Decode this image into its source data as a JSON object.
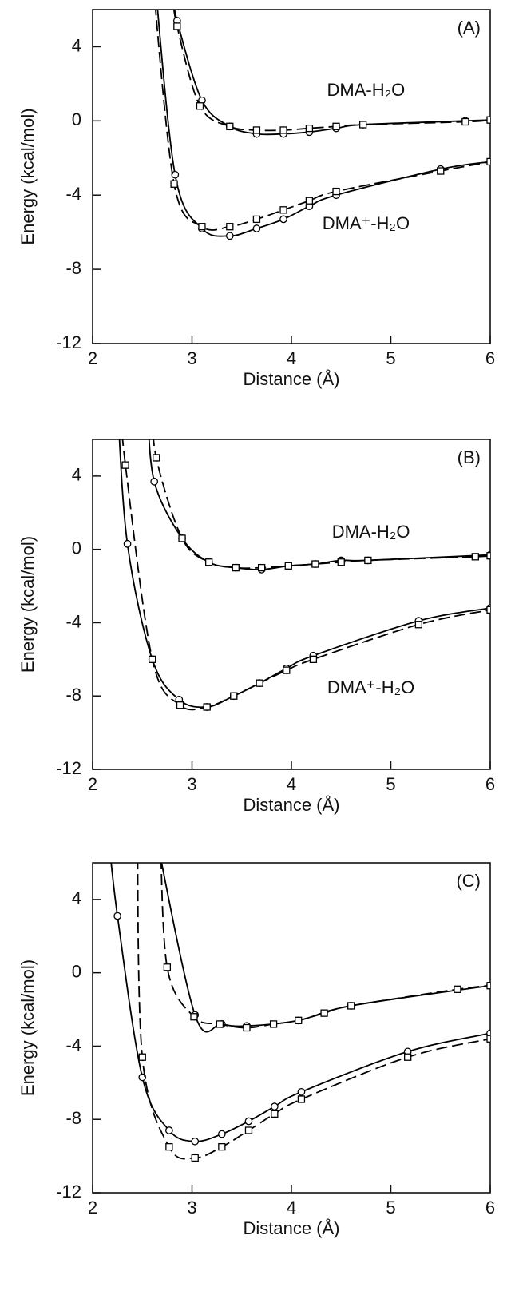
{
  "chart_data": [
    {
      "type": "line",
      "title": "(A)",
      "xlabel": "Distance (Å)",
      "ylabel": "Energy (kcal/mol)",
      "xlim": [
        2,
        6
      ],
      "ylim": [
        -12,
        6
      ],
      "xticks": [
        2,
        3,
        4,
        5,
        6
      ],
      "yticks": [
        4,
        0,
        -4,
        -8,
        -12
      ],
      "annotations": [
        "DMA-H₂O",
        "DMA⁺-H₂O"
      ],
      "series": [
        {
          "color": "#000000",
          "line_style": "solid",
          "marker": "circle",
          "x": [
            2.8,
            2.85,
            3.1,
            3.38,
            3.65,
            3.92,
            4.18,
            4.45,
            4.72,
            5.75,
            6
          ],
          "values": [
            7,
            5.4,
            1.1,
            -0.3,
            -0.7,
            -0.7,
            -0.6,
            -0.4,
            -0.2,
            0,
            0.05
          ]
        },
        {
          "color": "#000000",
          "line_style": "dashed",
          "marker": "square",
          "x": [
            2.8,
            2.85,
            3.08,
            3.38,
            3.65,
            3.92,
            4.18,
            4.45,
            4.72,
            5.75,
            6
          ],
          "values": [
            7,
            5.1,
            0.8,
            -0.3,
            -0.5,
            -0.5,
            -0.4,
            -0.3,
            -0.2,
            -0.05,
            0.05
          ]
        },
        {
          "color": "#000000",
          "line_style": "solid",
          "marker": "circle",
          "x": [
            2.62,
            2.83,
            3.1,
            3.38,
            3.65,
            3.92,
            4.18,
            4.45,
            5.5,
            6
          ],
          "values": [
            8,
            -2.9,
            -5.8,
            -6.2,
            -5.8,
            -5.3,
            -4.6,
            -4.0,
            -2.6,
            -2.2
          ]
        },
        {
          "color": "#000000",
          "line_style": "dashed",
          "marker": "square",
          "x": [
            2.6,
            2.82,
            3.1,
            3.38,
            3.65,
            3.92,
            4.18,
            4.45,
            5.5,
            6
          ],
          "values": [
            8,
            -3.4,
            -5.7,
            -5.7,
            -5.3,
            -4.8,
            -4.3,
            -3.8,
            -2.7,
            -2.2
          ]
        }
      ]
    },
    {
      "type": "line",
      "title": "(B)",
      "xlabel": "Distance (Å)",
      "ylabel": "Energy (kcal/mol)",
      "xlim": [
        2,
        6
      ],
      "ylim": [
        -12,
        6
      ],
      "xticks": [
        2,
        3,
        4,
        5,
        6
      ],
      "yticks": [
        4,
        0,
        -4,
        -8,
        -12
      ],
      "annotations": [
        "DMA-H₂O",
        "DMA⁺-H₂O"
      ],
      "series": [
        {
          "color": "#000000",
          "line_style": "solid",
          "marker": "circle",
          "x": [
            2.55,
            2.62,
            2.9,
            3.17,
            3.44,
            3.7,
            3.97,
            4.24,
            4.5,
            4.77,
            6
          ],
          "values": [
            8,
            3.7,
            0.6,
            -0.7,
            -1.0,
            -1.1,
            -0.9,
            -0.8,
            -0.6,
            -0.6,
            -0.3
          ]
        },
        {
          "color": "#000000",
          "line_style": "dashed",
          "marker": "square",
          "x": [
            2.6,
            2.64,
            2.9,
            3.17,
            3.44,
            3.7,
            3.97,
            4.24,
            4.5,
            4.77,
            5.85,
            6
          ],
          "values": [
            8,
            5.0,
            0.6,
            -0.7,
            -1.0,
            -1.0,
            -0.9,
            -0.8,
            -0.7,
            -0.6,
            -0.4,
            -0.35
          ]
        },
        {
          "color": "#000000",
          "line_style": "solid",
          "marker": "circle",
          "x": [
            2.25,
            2.35,
            2.6,
            2.87,
            3.15,
            3.42,
            3.68,
            3.95,
            4.22,
            5.28,
            6
          ],
          "values": [
            8,
            0.3,
            -6.0,
            -8.2,
            -8.6,
            -8.0,
            -7.3,
            -6.5,
            -5.8,
            -3.9,
            -3.2
          ]
        },
        {
          "color": "#000000",
          "line_style": "dashed",
          "marker": "square",
          "x": [
            2.28,
            2.33,
            2.6,
            2.88,
            3.15,
            3.42,
            3.68,
            3.95,
            4.22,
            5.28,
            6
          ],
          "values": [
            8,
            4.6,
            -6.0,
            -8.5,
            -8.6,
            -8.0,
            -7.3,
            -6.6,
            -6.0,
            -4.1,
            -3.3
          ]
        }
      ]
    },
    {
      "type": "line",
      "title": "(C)",
      "xlabel": "Distance (Å)",
      "ylabel": "Energy (kcal/mol)",
      "xlim": [
        2,
        6
      ],
      "ylim": [
        -12,
        6
      ],
      "xticks": [
        2,
        3,
        4,
        5,
        6
      ],
      "yticks": [
        4,
        0,
        -4,
        -8,
        -12
      ],
      "series": [
        {
          "color": "#000000",
          "line_style": "solid",
          "marker": "circle",
          "x": [
            2.62,
            3.03,
            3.3,
            3.55,
            4.07,
            4.6,
            6
          ],
          "values": [
            8,
            -2.3,
            -2.8,
            -2.9,
            -2.6,
            -1.8,
            -0.7
          ]
        },
        {
          "color": "#000000",
          "line_style": "dashed",
          "marker": "square",
          "x": [
            2.68,
            2.75,
            3.02,
            3.28,
            3.55,
            3.82,
            4.07,
            4.33,
            4.6,
            5.67,
            6
          ],
          "values": [
            8,
            0.3,
            -2.4,
            -2.8,
            -3.0,
            -2.8,
            -2.6,
            -2.2,
            -1.8,
            -0.9,
            -0.7
          ]
        },
        {
          "color": "#000000",
          "line_style": "solid",
          "marker": "circle",
          "x": [
            2.15,
            2.25,
            2.5,
            2.77,
            3.03,
            3.3,
            3.57,
            3.83,
            4.1,
            5.17,
            6
          ],
          "values": [
            8,
            3.1,
            -5.7,
            -8.6,
            -9.2,
            -8.8,
            -8.1,
            -7.3,
            -6.5,
            -4.3,
            -3.3
          ]
        },
        {
          "color": "#000000",
          "line_style": "dashed",
          "marker": "square",
          "x": [
            2.45,
            2.5,
            2.77,
            3.03,
            3.3,
            3.57,
            3.83,
            4.1,
            5.17,
            6
          ],
          "values": [
            8,
            -4.6,
            -9.5,
            -10.1,
            -9.5,
            -8.6,
            -7.7,
            -6.9,
            -4.6,
            -3.6
          ]
        }
      ]
    }
  ]
}
